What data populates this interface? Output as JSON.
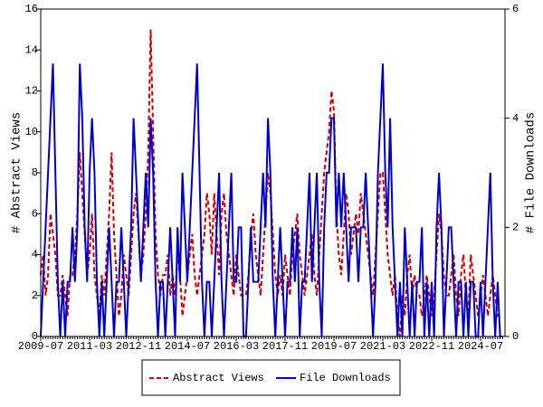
{
  "chart_data": {
    "type": "line",
    "y_label": "# Abstract Views",
    "y2_label": "# File Downloads",
    "x": [
      "2009-07",
      null,
      null,
      null,
      null,
      null,
      null,
      null,
      null,
      null,
      null,
      null,
      null,
      null,
      null,
      null,
      null,
      null,
      null,
      null,
      "2011-03",
      null,
      null,
      null,
      null,
      null,
      null,
      null,
      null,
      null,
      null,
      null,
      null,
      null,
      null,
      null,
      null,
      null,
      null,
      null,
      "2012-11",
      null,
      null,
      null,
      null,
      null,
      null,
      null,
      null,
      null,
      null,
      null,
      null,
      null,
      null,
      null,
      null,
      null,
      null,
      null,
      "2014-07",
      null,
      null,
      null,
      null,
      null,
      null,
      null,
      null,
      null,
      null,
      null,
      null,
      null,
      null,
      null,
      null,
      null,
      null,
      null,
      "2016-03",
      null,
      null,
      null,
      null,
      null,
      null,
      null,
      null,
      null,
      null,
      null,
      null,
      null,
      null,
      null,
      null,
      null,
      null,
      null,
      "2017-11",
      null,
      null,
      null,
      null,
      null,
      null,
      null,
      null,
      null,
      null,
      null,
      null,
      null,
      null,
      null,
      null,
      null,
      null,
      null,
      "2019-07",
      null,
      null,
      null,
      null,
      null,
      null,
      null,
      null,
      null,
      null,
      null,
      null,
      null,
      null,
      null,
      null,
      null,
      null,
      null,
      "2021-03",
      null,
      null,
      null,
      null,
      null,
      null,
      null,
      null,
      null,
      null,
      null,
      null,
      null,
      null,
      null,
      null,
      null,
      null,
      null,
      "2022-11",
      null,
      null,
      null,
      null,
      null,
      null,
      null,
      null,
      null,
      null,
      null,
      null,
      null,
      null,
      null,
      null,
      null,
      null,
      null,
      "2024-07",
      null,
      null,
      null,
      null,
      null,
      null,
      null,
      null,
      null
    ],
    "series": [
      {
        "name": "Abstract Views",
        "color": "#cc0000",
        "dash": true,
        "values": [
          3,
          4,
          2,
          3,
          6,
          5,
          4,
          2,
          2,
          3,
          2,
          1,
          3,
          3,
          4,
          6,
          9,
          7,
          5,
          3,
          4,
          6,
          3,
          2,
          1,
          3,
          2,
          4,
          6,
          9,
          5,
          3,
          1,
          2,
          4,
          3,
          2,
          4,
          6,
          7,
          5,
          3,
          4,
          6,
          9,
          15,
          10,
          5,
          3,
          2,
          3,
          3,
          4,
          2,
          3,
          2,
          4,
          3,
          1,
          2,
          3,
          4,
          5,
          3,
          2,
          3,
          4,
          5,
          7,
          6,
          4,
          7,
          5,
          3,
          6,
          7,
          5,
          4,
          3,
          2,
          4,
          3,
          2,
          2,
          2,
          3,
          5,
          6,
          4,
          3,
          2,
          4,
          6,
          8,
          7,
          5,
          3,
          2,
          3,
          2,
          4,
          3,
          2,
          4,
          5,
          6,
          4,
          3,
          2,
          3,
          4,
          5,
          3,
          2,
          4,
          6,
          8,
          9,
          10,
          12,
          11,
          6,
          4,
          3,
          5,
          7,
          6,
          4,
          5,
          6,
          5,
          7,
          6,
          5,
          4,
          3,
          2,
          4,
          6,
          8,
          8,
          6,
          4,
          3,
          2,
          3,
          1,
          0,
          2,
          1,
          3,
          4,
          2,
          3,
          2,
          2,
          1,
          2,
          3,
          2,
          1,
          2,
          4,
          6,
          5,
          3,
          2,
          2,
          3,
          4,
          2,
          1,
          3,
          4,
          2,
          1,
          4,
          3,
          2,
          1,
          2,
          3,
          2,
          1,
          2,
          3,
          2,
          1,
          1,
          1
        ]
      },
      {
        "name": "File Downloads",
        "color": "#0000cc",
        "dash": false,
        "axis": "y2",
        "values": [
          0,
          1,
          2,
          3,
          4,
          5,
          3,
          1,
          0,
          1,
          0,
          1,
          1,
          2,
          1,
          2,
          5,
          4,
          2,
          1,
          3,
          4,
          3,
          1,
          0,
          1,
          0,
          1,
          2,
          1,
          0,
          1,
          1,
          2,
          1,
          0,
          1,
          2,
          4,
          3,
          2,
          1,
          2,
          3,
          2,
          4,
          3,
          1,
          0,
          1,
          1,
          0,
          1,
          2,
          1,
          0,
          2,
          1,
          3,
          2,
          1,
          2,
          3,
          4,
          5,
          3,
          1,
          0,
          1,
          1,
          0,
          1,
          2,
          3,
          1,
          0,
          1,
          2,
          3,
          1,
          1,
          2,
          2,
          0,
          0,
          1,
          2,
          1,
          1,
          1,
          2,
          3,
          2,
          4,
          3,
          1,
          0,
          1,
          2,
          1,
          0,
          1,
          1,
          2,
          1,
          2,
          0,
          1,
          1,
          2,
          3,
          1,
          2,
          3,
          1,
          0,
          2,
          3,
          3,
          4,
          4,
          2,
          3,
          2,
          3,
          2,
          1,
          2,
          2,
          2,
          1,
          2,
          2,
          3,
          2,
          1,
          0,
          1,
          3,
          4,
          5,
          3,
          2,
          4,
          2,
          1,
          0,
          1,
          0,
          2,
          1,
          0,
          1,
          0,
          1,
          1,
          2,
          0,
          1,
          0,
          1,
          0,
          2,
          3,
          2,
          0,
          1,
          2,
          2,
          1,
          0,
          1,
          1,
          0,
          1,
          0,
          1,
          1,
          0,
          0,
          1,
          0,
          1,
          2,
          3,
          1,
          0,
          1,
          0,
          0
        ]
      }
    ],
    "ylim": [
      0,
      16
    ],
    "yticks": [
      0,
      2,
      4,
      6,
      8,
      10,
      12,
      14,
      16
    ],
    "y2lim": [
      0,
      6
    ],
    "y2ticks": [
      0,
      2,
      4,
      6
    ],
    "legend": "bottom"
  }
}
